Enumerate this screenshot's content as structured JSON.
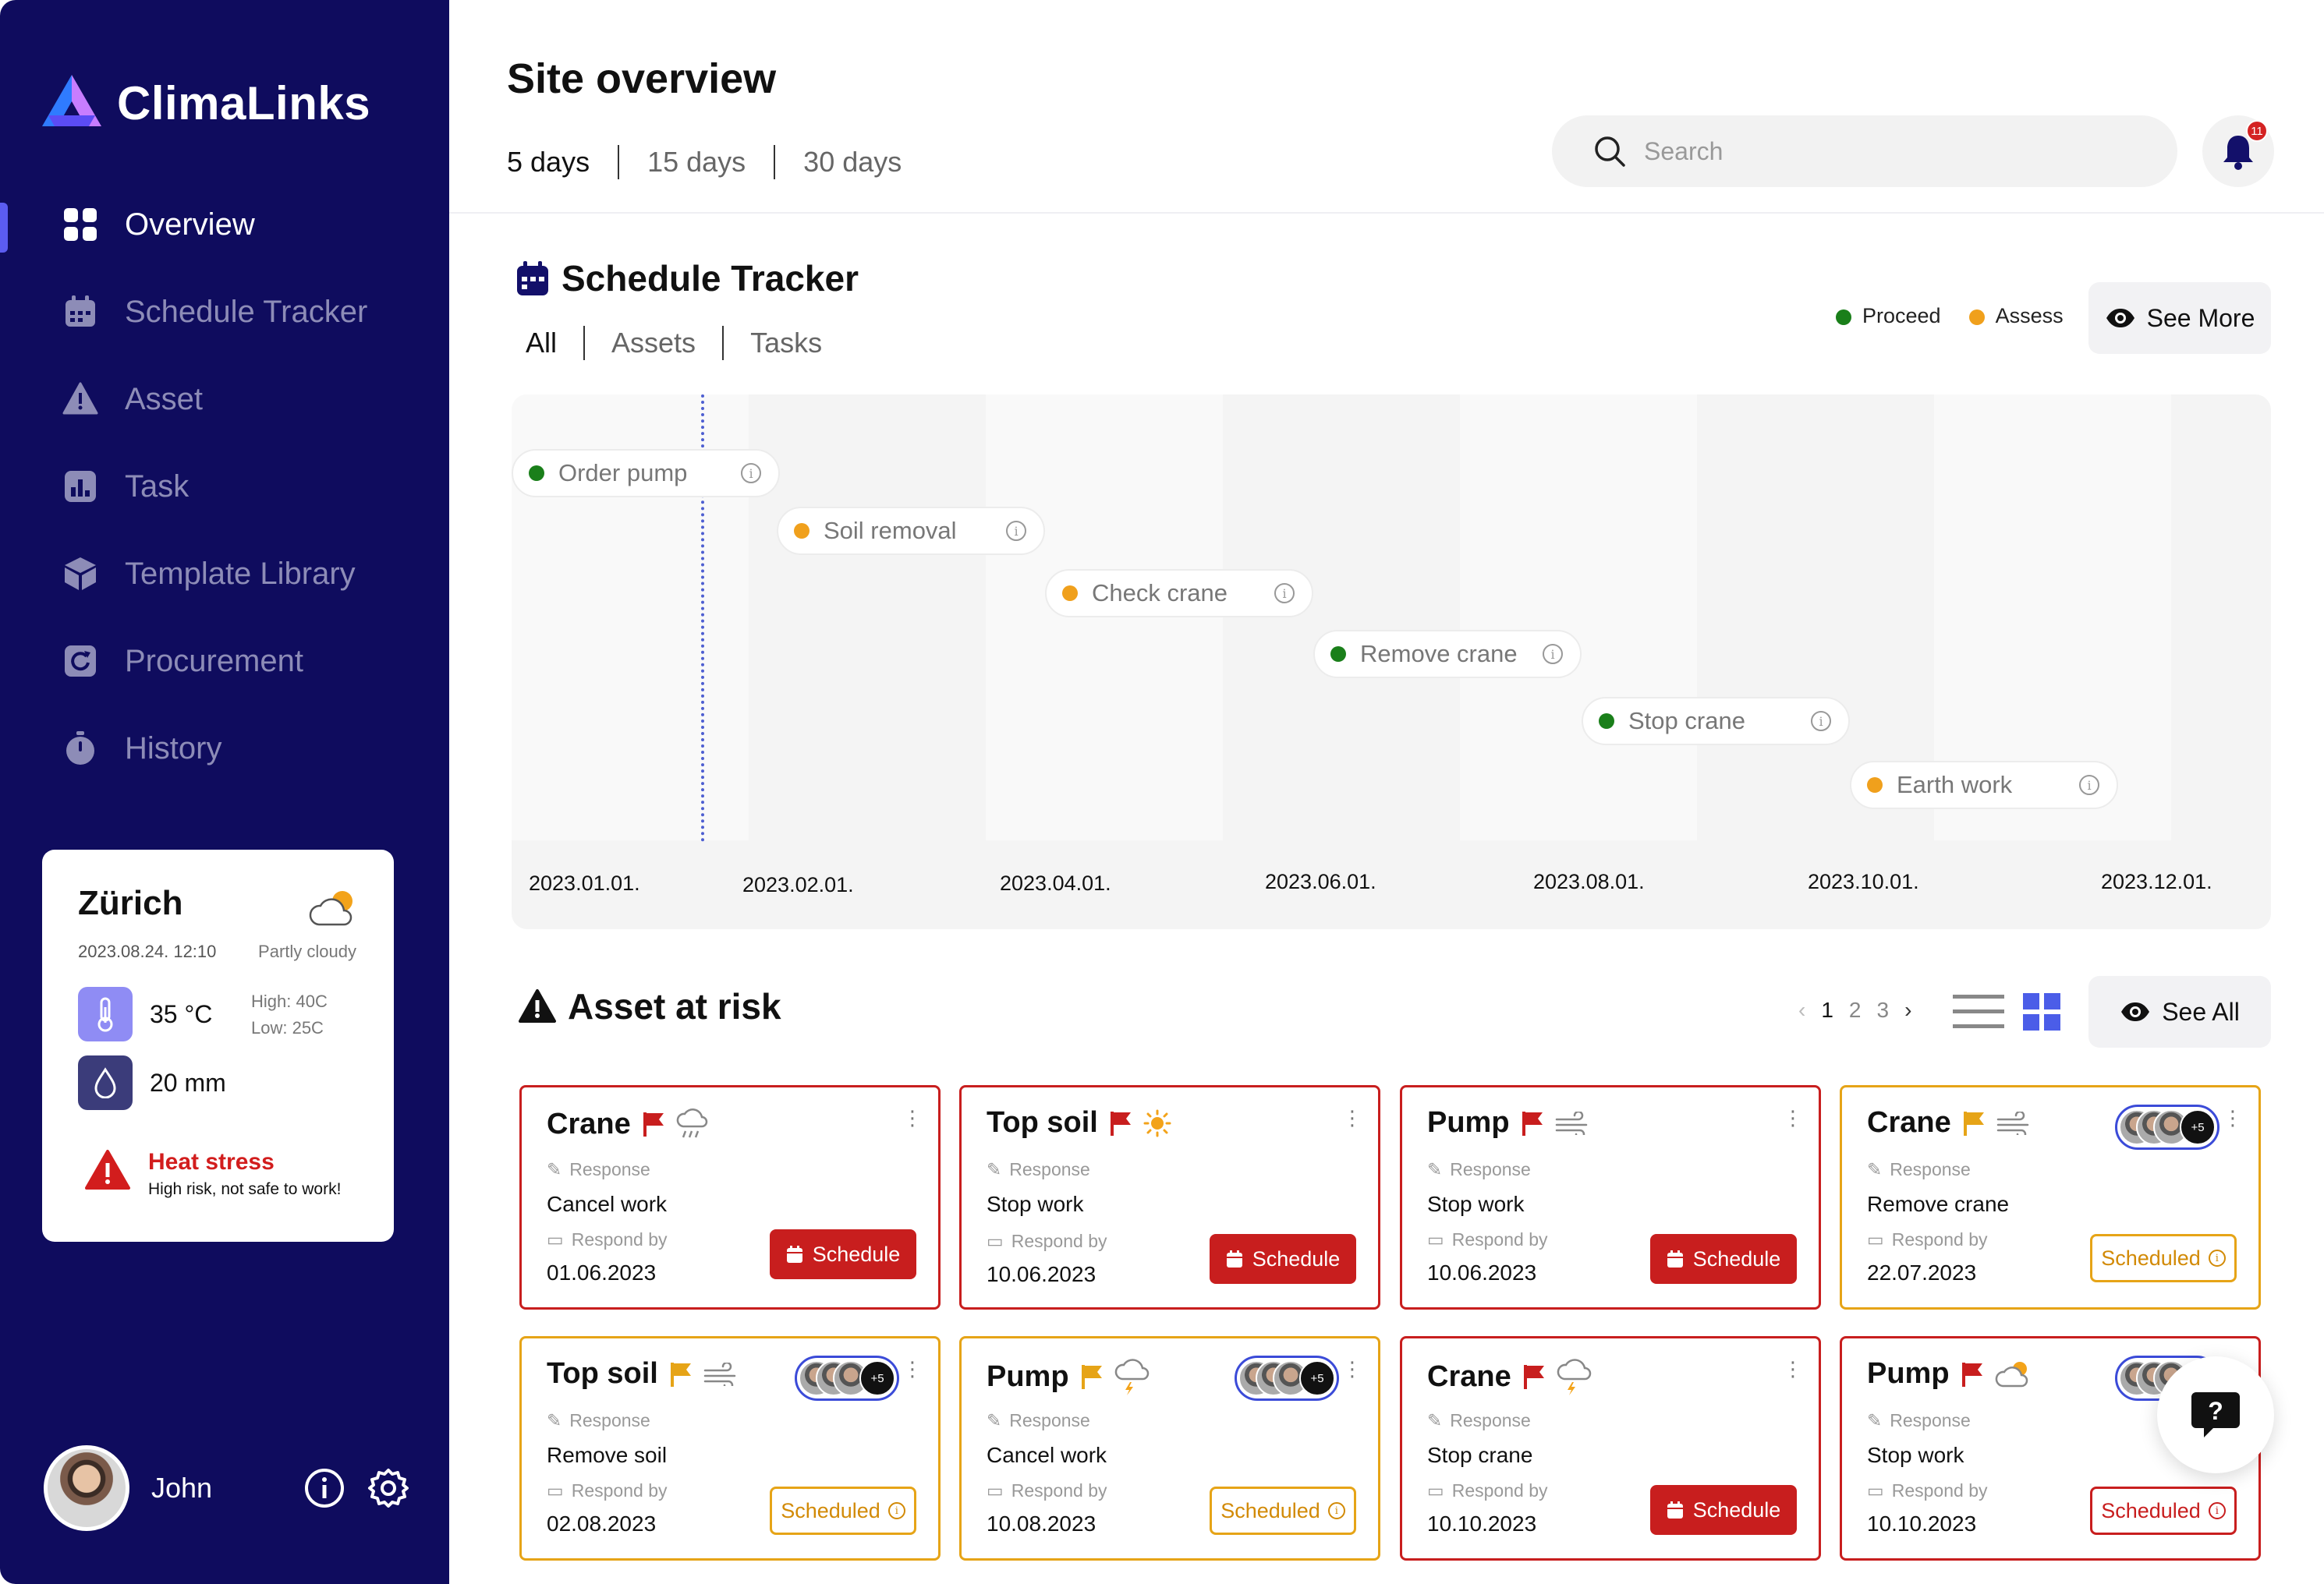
{
  "brand": {
    "name": "ClimaLinks"
  },
  "sidebar": {
    "items": [
      {
        "label": "Overview",
        "icon": "grid-icon",
        "active": true
      },
      {
        "label": "Schedule Tracker",
        "icon": "calendar-icon"
      },
      {
        "label": "Asset",
        "icon": "warning-icon"
      },
      {
        "label": "Task",
        "icon": "bar-chart-icon"
      },
      {
        "label": "Template Library",
        "icon": "cube-icon"
      },
      {
        "label": "Procurement",
        "icon": "refresh-icon"
      },
      {
        "label": "History",
        "icon": "stopwatch-icon"
      }
    ]
  },
  "weather": {
    "city": "Zürich",
    "datetime": "2023.08.24. 12:10",
    "condition": "Partly cloudy",
    "temperature": "35 °C",
    "high": "High: 40C",
    "low": "Low: 25C",
    "rain": "20 mm",
    "alert_title": "Heat stress",
    "alert_sub": "High risk, not safe to work!"
  },
  "user": {
    "name": "John"
  },
  "header": {
    "title": "Site overview",
    "ranges": [
      "5 days",
      "15 days",
      "30 days"
    ],
    "search_placeholder": "Search",
    "notifications": "11"
  },
  "schedule": {
    "title": "Schedule Tracker",
    "filters": [
      "All",
      "Assets",
      "Tasks"
    ],
    "legend": [
      {
        "label": "Proceed",
        "color": "#1a7f1a"
      },
      {
        "label": "Assess",
        "color": "#f0a01c"
      }
    ],
    "see_more": "See More",
    "dates": [
      "2023.01.01.",
      "2023.02.01.",
      "2023.04.01.",
      "2023.06.01.",
      "2023.08.01.",
      "2023.10.01.",
      "2023.12.01."
    ],
    "tasks": [
      {
        "label": "Order pump",
        "status": "proceed"
      },
      {
        "label": "Soil removal",
        "status": "assess"
      },
      {
        "label": "Check crane",
        "status": "assess"
      },
      {
        "label": "Remove crane",
        "status": "proceed"
      },
      {
        "label": "Stop crane",
        "status": "proceed"
      },
      {
        "label": "Earth work",
        "status": "assess"
      }
    ]
  },
  "assets": {
    "title": "Asset at risk",
    "pages": [
      "1",
      "2",
      "3"
    ],
    "see_all": "See All",
    "response_label": "Response",
    "respond_label": "Respond by",
    "schedule_label": "Schedule",
    "scheduled_label": "Scheduled",
    "cards": [
      {
        "name": "Crane",
        "response": "Cancel work",
        "date": "01.06.2023",
        "weather": "rain-cloud-icon",
        "flag": "red",
        "state": "schedule",
        "border": "red"
      },
      {
        "name": "Top soil",
        "response": "Stop work",
        "date": "10.06.2023",
        "weather": "sun-icon",
        "flag": "red",
        "state": "schedule",
        "border": "red"
      },
      {
        "name": "Pump",
        "response": "Stop work",
        "date": "10.06.2023",
        "weather": "wind-icon",
        "flag": "red",
        "state": "schedule",
        "border": "red"
      },
      {
        "name": "Crane",
        "response": "Remove crane",
        "date": "22.07.2023",
        "weather": "wind-icon",
        "flag": "amber",
        "state": "scheduled",
        "border": "amber",
        "assignees": "+5"
      },
      {
        "name": "Top soil",
        "response": "Remove soil",
        "date": "02.08.2023",
        "weather": "wind-icon",
        "flag": "amber",
        "state": "scheduled",
        "border": "amber",
        "assignees": "+5"
      },
      {
        "name": "Pump",
        "response": "Cancel work",
        "date": "10.08.2023",
        "weather": "storm-cloud-icon",
        "flag": "amber",
        "state": "scheduled",
        "border": "amber",
        "assignees": "+5"
      },
      {
        "name": "Crane",
        "response": "Stop crane",
        "date": "10.10.2023",
        "weather": "storm-cloud-icon",
        "flag": "red",
        "state": "schedule",
        "border": "red"
      },
      {
        "name": "Pump",
        "response": "Stop work",
        "date": "10.10.2023",
        "weather": "partly-cloudy-icon",
        "flag": "red",
        "state": "scheduled-red",
        "border": "red",
        "assignees": "+5"
      }
    ]
  }
}
